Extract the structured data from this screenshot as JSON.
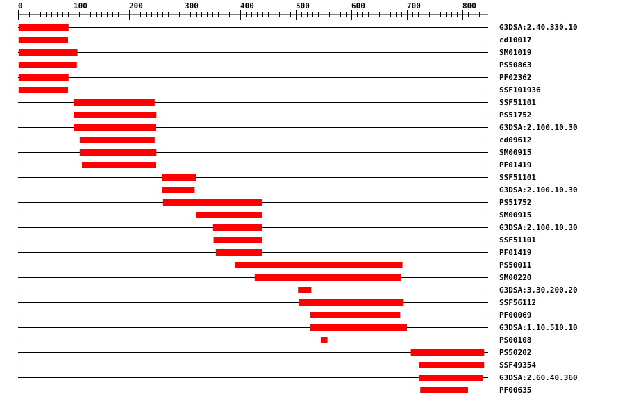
{
  "axis": {
    "min": 0,
    "max": 845,
    "major_step": 100,
    "minor_step": 10,
    "labels": [
      "0",
      "100",
      "200",
      "300",
      "400",
      "500",
      "600",
      "700",
      "800"
    ]
  },
  "colors": {
    "domain": "#ff0000",
    "line": "#000000"
  },
  "rows": [
    {
      "label": "G3DSA:2.40.330.10",
      "start": 1,
      "end": 91
    },
    {
      "label": "cd10017",
      "start": 1,
      "end": 90
    },
    {
      "label": "SM01019",
      "start": 1,
      "end": 107
    },
    {
      "label": "PS50863",
      "start": 1,
      "end": 106
    },
    {
      "label": "PF02362",
      "start": 1,
      "end": 91
    },
    {
      "label": "SSF101936",
      "start": 1,
      "end": 90
    },
    {
      "label": "SSF51101",
      "start": 100,
      "end": 246
    },
    {
      "label": "PS51752",
      "start": 100,
      "end": 249
    },
    {
      "label": "G3DSA:2.100.10.30",
      "start": 100,
      "end": 248
    },
    {
      "label": "cd09612",
      "start": 111,
      "end": 246
    },
    {
      "label": "SM00915",
      "start": 111,
      "end": 249
    },
    {
      "label": "PF01419",
      "start": 115,
      "end": 248
    },
    {
      "label": "SSF51101",
      "start": 260,
      "end": 320
    },
    {
      "label": "G3DSA:2.100.10.30",
      "start": 260,
      "end": 318
    },
    {
      "label": "PS51752",
      "start": 261,
      "end": 439
    },
    {
      "label": "SM00915",
      "start": 320,
      "end": 439
    },
    {
      "label": "G3DSA:2.100.10.30",
      "start": 351,
      "end": 439
    },
    {
      "label": "SSF51101",
      "start": 352,
      "end": 439
    },
    {
      "label": "PF01419",
      "start": 356,
      "end": 439
    },
    {
      "label": "PS50011",
      "start": 390,
      "end": 692
    },
    {
      "label": "SM00220",
      "start": 426,
      "end": 689
    },
    {
      "label": "G3DSA:3.30.200.20",
      "start": 504,
      "end": 528
    },
    {
      "label": "SSF56112",
      "start": 506,
      "end": 694
    },
    {
      "label": "PF00069",
      "start": 526,
      "end": 688
    },
    {
      "label": "G3DSA:1.10.510.10",
      "start": 526,
      "end": 700
    },
    {
      "label": "PS00108",
      "start": 545,
      "end": 557
    },
    {
      "label": "PS50202",
      "start": 707,
      "end": 839
    },
    {
      "label": "SSF49354",
      "start": 722,
      "end": 839
    },
    {
      "label": "G3DSA:2.60.40.360",
      "start": 722,
      "end": 837
    },
    {
      "label": "PF00635",
      "start": 724,
      "end": 810
    }
  ]
}
